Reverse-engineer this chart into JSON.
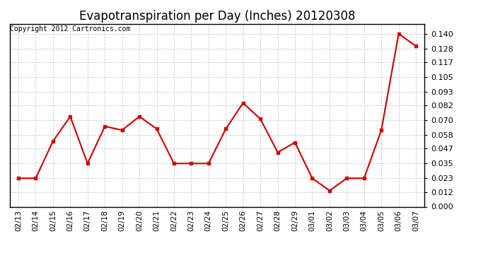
{
  "title": "Evapotranspiration per Day (Inches) 20120308",
  "copyright_text": "Copyright 2012 Cartronics.com",
  "dates": [
    "02/13",
    "02/14",
    "02/15",
    "02/16",
    "02/17",
    "02/18",
    "02/19",
    "02/20",
    "02/21",
    "02/22",
    "02/23",
    "02/24",
    "02/25",
    "02/26",
    "02/27",
    "02/28",
    "02/29",
    "03/01",
    "03/02",
    "03/03",
    "03/04",
    "03/05",
    "03/06",
    "03/07"
  ],
  "values": [
    0.023,
    0.023,
    0.053,
    0.073,
    0.035,
    0.065,
    0.062,
    0.073,
    0.063,
    0.035,
    0.035,
    0.035,
    0.063,
    0.084,
    0.071,
    0.044,
    0.052,
    0.023,
    0.013,
    0.023,
    0.023,
    0.062,
    0.14,
    0.13
  ],
  "line_color": "#cc0000",
  "marker": "s",
  "marker_size": 2.5,
  "line_width": 1.5,
  "yticks": [
    0.0,
    0.012,
    0.023,
    0.035,
    0.047,
    0.058,
    0.07,
    0.082,
    0.093,
    0.105,
    0.117,
    0.128,
    0.14
  ],
  "ylim": [
    0.0,
    0.148
  ],
  "background_color": "#ffffff",
  "grid_color": "#cccccc",
  "title_fontsize": 12,
  "copyright_fontsize": 7,
  "tick_fontsize": 7.5,
  "ytick_fontsize": 8
}
